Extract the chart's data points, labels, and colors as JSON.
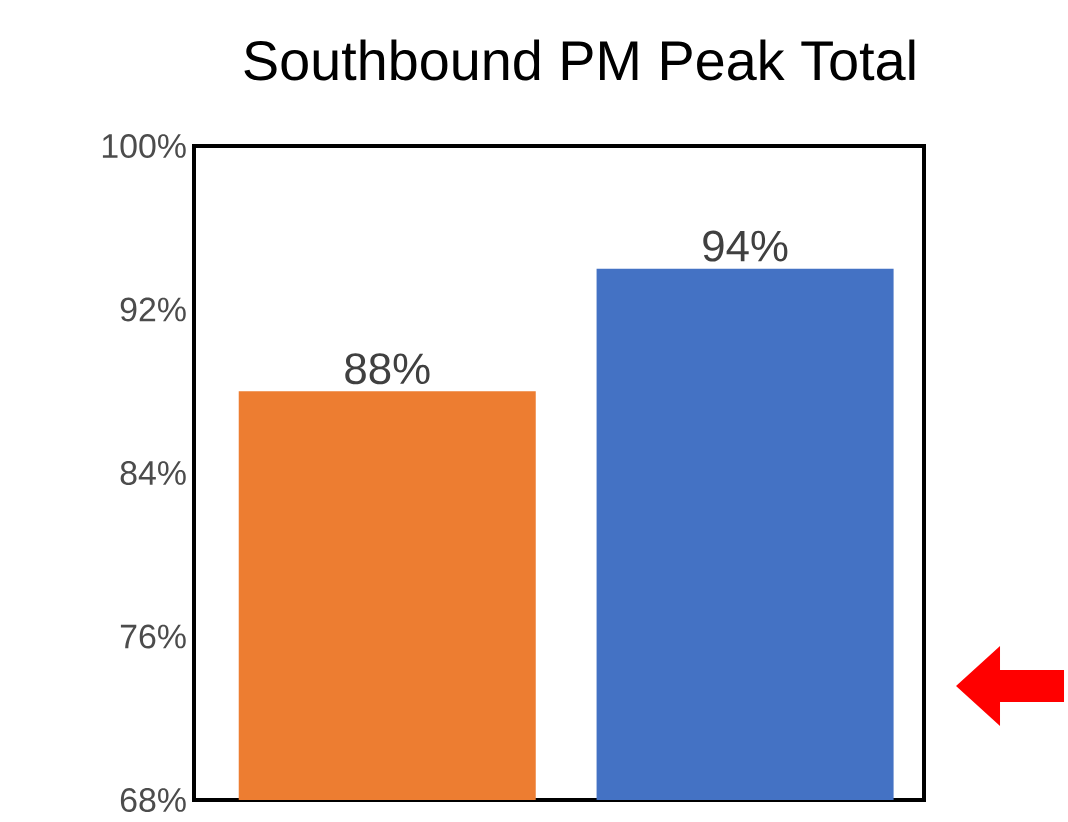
{
  "chart_data": {
    "type": "bar",
    "title": "Southbound PM Peak Total",
    "categories": [
      null,
      null
    ],
    "values": [
      88,
      94
    ],
    "colors": [
      "#ed7d31",
      "#4472c4"
    ],
    "value_labels": [
      "88%",
      "94%"
    ],
    "ylim": [
      68,
      100
    ],
    "yticks": [
      {
        "value": 68,
        "label": "68%"
      },
      {
        "value": 76,
        "label": "76%"
      },
      {
        "value": 84,
        "label": "84%"
      },
      {
        "value": 92,
        "label": "92%"
      },
      {
        "value": 100,
        "label": "100%"
      }
    ]
  }
}
